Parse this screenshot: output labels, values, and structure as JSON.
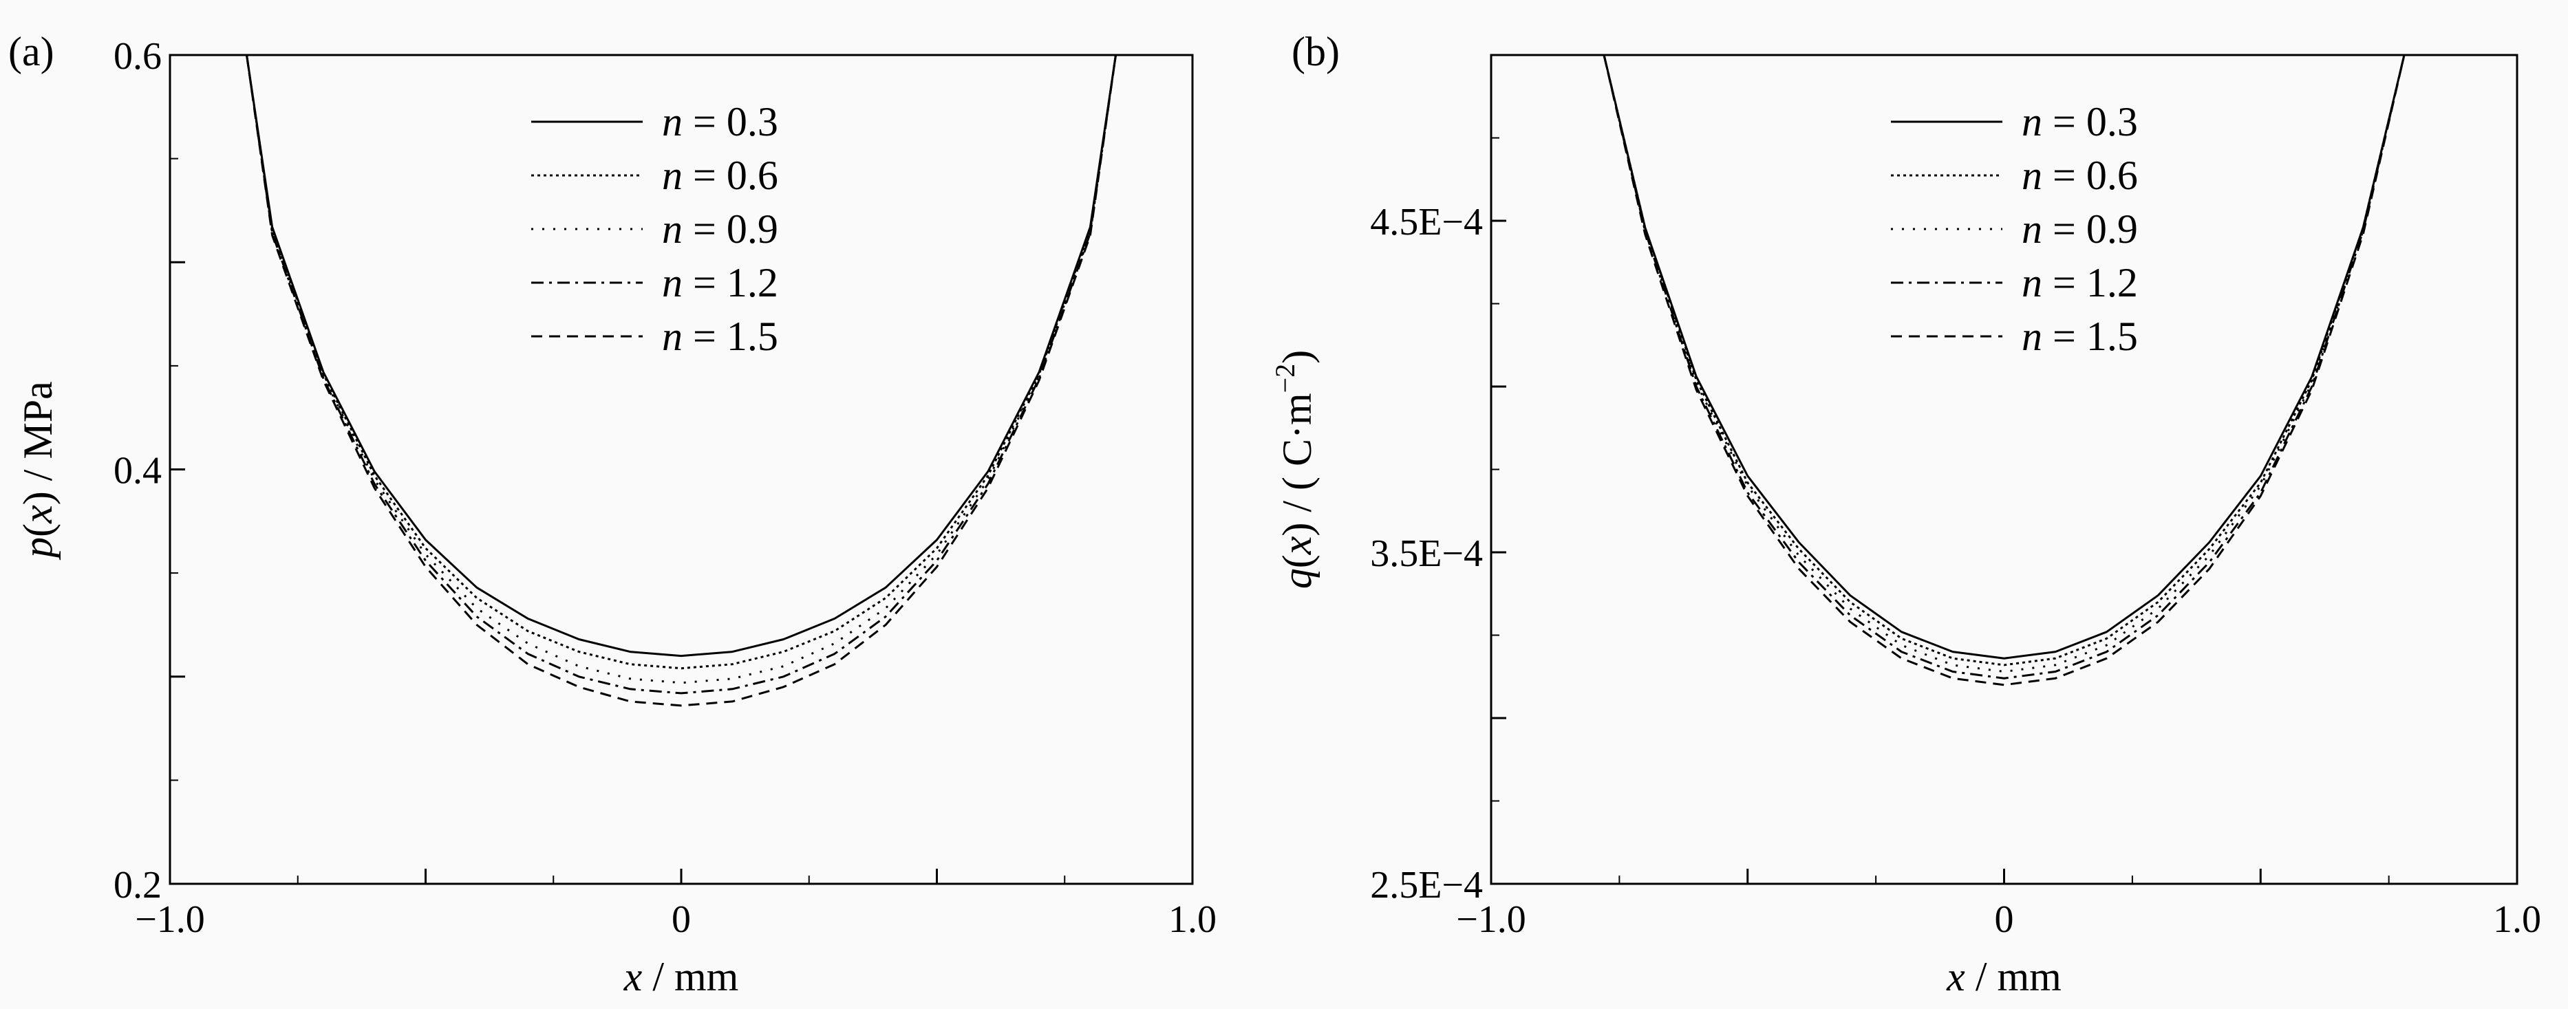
{
  "chart_data": [
    {
      "type": "line",
      "panel_label": "(a)",
      "xlabel": {
        "var": "x",
        "unit": " / mm"
      },
      "ylabel": {
        "func": "p",
        "var": "x",
        "unit": " / MPa"
      },
      "xlim": [
        -1.0,
        1.0
      ],
      "ylim": [
        0.2,
        0.6
      ],
      "x_ticks": [
        -1.0,
        -0.5,
        0,
        0.5,
        1.0
      ],
      "x_tick_labels": [
        "−1.0",
        "",
        "0",
        "",
        "1.0"
      ],
      "y_ticks": [
        0.2,
        0.3,
        0.4,
        0.5,
        0.6
      ],
      "y_tick_labels": [
        "0.2",
        "",
        "0.4",
        "",
        "0.6"
      ],
      "grid": false,
      "legend_position": "top-center",
      "series": [
        {
          "name": "n = 0.3",
          "legend_var": "n",
          "legend_value": " = 0.3",
          "style": "solid",
          "x": [
            -0.85,
            -0.8,
            -0.7,
            -0.6,
            -0.5,
            -0.4,
            -0.3,
            -0.2,
            -0.1,
            0,
            0.1,
            0.2,
            0.3,
            0.4,
            0.5,
            0.6,
            0.7,
            0.8,
            0.85
          ],
          "y": [
            0.6,
            0.517,
            0.447,
            0.399,
            0.366,
            0.343,
            0.328,
            0.318,
            0.312,
            0.31,
            0.312,
            0.318,
            0.328,
            0.343,
            0.366,
            0.399,
            0.447,
            0.517,
            0.6
          ]
        },
        {
          "name": "n = 0.6",
          "legend_var": "n",
          "legend_value": " = 0.6",
          "style": "dotted",
          "x": [
            -0.85,
            -0.8,
            -0.7,
            -0.6,
            -0.5,
            -0.4,
            -0.3,
            -0.2,
            -0.1,
            0,
            0.1,
            0.2,
            0.3,
            0.4,
            0.5,
            0.6,
            0.7,
            0.8,
            0.85
          ],
          "y": [
            0.6,
            0.516,
            0.446,
            0.397,
            0.362,
            0.338,
            0.322,
            0.312,
            0.306,
            0.304,
            0.306,
            0.312,
            0.322,
            0.338,
            0.362,
            0.397,
            0.446,
            0.516,
            0.6
          ]
        },
        {
          "name": "n = 0.9",
          "legend_var": "n",
          "legend_value": " = 0.9",
          "style": "sparse-dotted",
          "x": [
            -0.85,
            -0.8,
            -0.7,
            -0.6,
            -0.5,
            -0.4,
            -0.3,
            -0.2,
            -0.1,
            0,
            0.1,
            0.2,
            0.3,
            0.4,
            0.5,
            0.6,
            0.7,
            0.8,
            0.85
          ],
          "y": [
            0.6,
            0.515,
            0.445,
            0.395,
            0.359,
            0.333,
            0.316,
            0.305,
            0.299,
            0.297,
            0.299,
            0.305,
            0.316,
            0.333,
            0.359,
            0.395,
            0.445,
            0.515,
            0.6
          ]
        },
        {
          "name": "n = 1.2",
          "legend_var": "n",
          "legend_value": " = 1.2",
          "style": "dash-dot",
          "x": [
            -0.85,
            -0.8,
            -0.7,
            -0.6,
            -0.5,
            -0.4,
            -0.3,
            -0.2,
            -0.1,
            0,
            0.1,
            0.2,
            0.3,
            0.4,
            0.5,
            0.6,
            0.7,
            0.8,
            0.85
          ],
          "y": [
            0.6,
            0.514,
            0.444,
            0.393,
            0.356,
            0.329,
            0.311,
            0.3,
            0.294,
            0.292,
            0.294,
            0.3,
            0.311,
            0.329,
            0.356,
            0.393,
            0.444,
            0.514,
            0.6
          ]
        },
        {
          "name": "n = 1.5",
          "legend_var": "n",
          "legend_value": " = 1.5",
          "style": "dashed",
          "x": [
            -0.85,
            -0.8,
            -0.7,
            -0.6,
            -0.5,
            -0.4,
            -0.3,
            -0.2,
            -0.1,
            0,
            0.1,
            0.2,
            0.3,
            0.4,
            0.5,
            0.6,
            0.7,
            0.8,
            0.85
          ],
          "y": [
            0.6,
            0.513,
            0.443,
            0.391,
            0.353,
            0.325,
            0.306,
            0.295,
            0.288,
            0.286,
            0.288,
            0.295,
            0.306,
            0.325,
            0.353,
            0.391,
            0.443,
            0.513,
            0.6
          ]
        }
      ]
    },
    {
      "type": "line",
      "panel_label": "(b)",
      "xlabel": {
        "var": "x",
        "unit": " / mm"
      },
      "ylabel": {
        "func": "q",
        "var": "x",
        "unit": " / ( C·m",
        "sup": "−2",
        "close": ")"
      },
      "xlim": [
        -1.0,
        1.0
      ],
      "ylim": [
        0.00025,
        0.0005
      ],
      "x_ticks": [
        -1.0,
        -0.5,
        0,
        0.5,
        1.0
      ],
      "x_tick_labels": [
        "−1.0",
        "",
        "0",
        "",
        "1.0"
      ],
      "y_ticks": [
        0.00025,
        0.0003,
        0.00035,
        0.0004,
        0.00045,
        0.0005
      ],
      "y_tick_labels": [
        "2.5E−4",
        "",
        "3.5E−4",
        "",
        "4.5E−4",
        ""
      ],
      "grid": false,
      "legend_position": "top-center",
      "series": [
        {
          "name": "n = 0.3",
          "legend_var": "n",
          "legend_value": " = 0.3",
          "style": "solid",
          "x": [
            -0.78,
            -0.7,
            -0.6,
            -0.5,
            -0.4,
            -0.3,
            -0.2,
            -0.1,
            0,
            0.1,
            0.2,
            0.3,
            0.4,
            0.5,
            0.6,
            0.7,
            0.78
          ],
          "y": [
            0.0005,
            0.000448,
            0.000403,
            0.000373,
            0.000353,
            0.000337,
            0.000326,
            0.00032,
            0.000318,
            0.00032,
            0.000326,
            0.000337,
            0.000353,
            0.000373,
            0.000403,
            0.000448,
            0.0005
          ]
        },
        {
          "name": "n = 0.6",
          "legend_var": "n",
          "legend_value": " = 0.6",
          "style": "dotted",
          "x": [
            -0.78,
            -0.7,
            -0.6,
            -0.5,
            -0.4,
            -0.3,
            -0.2,
            -0.1,
            0,
            0.1,
            0.2,
            0.3,
            0.4,
            0.5,
            0.6,
            0.7,
            0.78
          ],
          "y": [
            0.0005,
            0.000448,
            0.000402,
            0.000371,
            0.000351,
            0.000335,
            0.000324,
            0.000318,
            0.000316,
            0.000318,
            0.000324,
            0.000335,
            0.000351,
            0.000371,
            0.000402,
            0.000448,
            0.0005
          ]
        },
        {
          "name": "n = 0.9",
          "legend_var": "n",
          "legend_value": " = 0.9",
          "style": "sparse-dotted",
          "x": [
            -0.78,
            -0.7,
            -0.6,
            -0.5,
            -0.4,
            -0.3,
            -0.2,
            -0.1,
            0,
            0.1,
            0.2,
            0.3,
            0.4,
            0.5,
            0.6,
            0.7,
            0.78
          ],
          "y": [
            0.0005,
            0.000447,
            0.000401,
            0.00037,
            0.000349,
            0.000333,
            0.000322,
            0.000316,
            0.000314,
            0.000316,
            0.000322,
            0.000333,
            0.000349,
            0.00037,
            0.000401,
            0.000447,
            0.0005
          ]
        },
        {
          "name": "n = 1.2",
          "legend_var": "n",
          "legend_value": " = 1.2",
          "style": "dash-dot",
          "x": [
            -0.78,
            -0.7,
            -0.6,
            -0.5,
            -0.4,
            -0.3,
            -0.2,
            -0.1,
            0,
            0.1,
            0.2,
            0.3,
            0.4,
            0.5,
            0.6,
            0.7,
            0.78
          ],
          "y": [
            0.0005,
            0.000447,
            0.0004,
            0.000368,
            0.000347,
            0.000331,
            0.00032,
            0.000314,
            0.000312,
            0.000314,
            0.00032,
            0.000331,
            0.000347,
            0.000368,
            0.0004,
            0.000447,
            0.0005
          ]
        },
        {
          "name": "n = 1.5",
          "legend_var": "n",
          "legend_value": " = 1.5",
          "style": "dashed",
          "x": [
            -0.78,
            -0.7,
            -0.6,
            -0.5,
            -0.4,
            -0.3,
            -0.2,
            -0.1,
            0,
            0.1,
            0.2,
            0.3,
            0.4,
            0.5,
            0.6,
            0.7,
            0.78
          ],
          "y": [
            0.0005,
            0.000446,
            0.000399,
            0.000367,
            0.000345,
            0.000329,
            0.000318,
            0.000312,
            0.00031,
            0.000312,
            0.000318,
            0.000329,
            0.000345,
            0.000367,
            0.000399,
            0.000446,
            0.0005
          ]
        }
      ]
    }
  ]
}
